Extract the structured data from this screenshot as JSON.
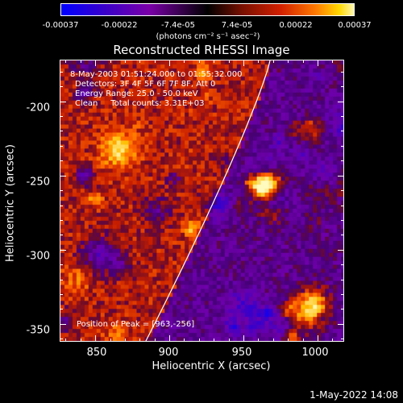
{
  "colorbar": {
    "ticks": [
      "-0.00037",
      "-0.00022",
      "-7.4e-05",
      "7.4e-05",
      "0.00022",
      "0.00037"
    ],
    "unit": "(photons cm⁻² s⁻¹ asec⁻²)"
  },
  "chart_data": {
    "type": "heatmap",
    "title": "Reconstructed RHESSI Image",
    "xlabel": "Heliocentric X (arcsec)",
    "ylabel": "Heliocentric Y (arcsec)",
    "xlim": [
      826,
      1018
    ],
    "ylim": [
      -362,
      -172
    ],
    "x_ticks": [
      850,
      900,
      950,
      1000
    ],
    "y_ticks": [
      -200,
      -250,
      -300,
      -350
    ],
    "zlim": [
      -0.00037,
      0.00037
    ],
    "peak_position": [
      963,
      -256
    ],
    "info_lines": [
      "8-May-2003 01:51:24.000 to 01:55:32.000",
      "Detectors: 3F 4F 5F 6F 7F 8F, Att 0",
      "Energy Range: 25.0 - 50.0 keV",
      "Clean     Total counts: 3.31E+03"
    ],
    "peak_label": "Position of Peak = [963,-256]"
  },
  "timestamp": "1-May-2022 14:08"
}
